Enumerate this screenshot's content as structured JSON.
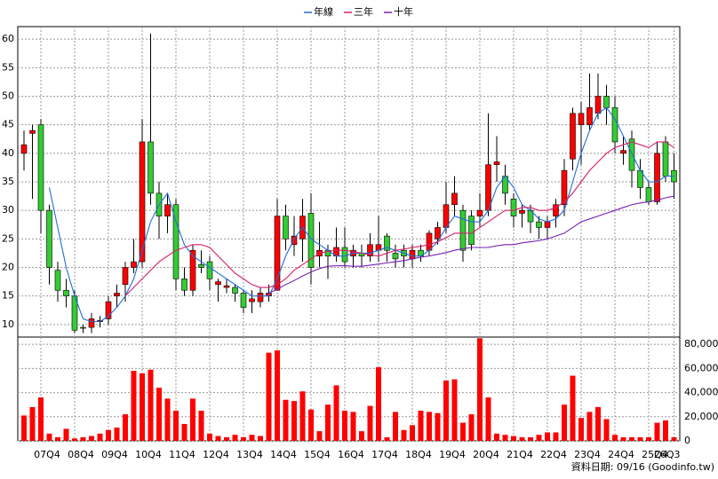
{
  "chart_data": {
    "type": "candlestick",
    "legend": "top",
    "grid": true,
    "footnote": "資料日期: 09/16 (Goodinfo.tw)",
    "categories": [
      null,
      null,
      "07Q4",
      null,
      null,
      null,
      "08Q4",
      null,
      null,
      null,
      "09Q4",
      null,
      null,
      null,
      "10Q4",
      null,
      null,
      null,
      "11Q4",
      null,
      null,
      null,
      "12Q4",
      null,
      null,
      null,
      "13Q4",
      null,
      null,
      null,
      "14Q4",
      null,
      null,
      null,
      "15Q4",
      null,
      null,
      null,
      "16Q4",
      null,
      null,
      null,
      "17Q4",
      null,
      null,
      null,
      "18Q4",
      null,
      null,
      null,
      "19Q4",
      null,
      null,
      null,
      "20Q4",
      null,
      null,
      null,
      "21Q4",
      null,
      null,
      null,
      "22Q4",
      null,
      null,
      null,
      "23Q4",
      null,
      null,
      null,
      "24Q4",
      null,
      null,
      null,
      "25Q4",
      null,
      null,
      "26Q3"
    ],
    "open": [
      40,
      43.5,
      45,
      30,
      19.5,
      16,
      15,
      9.5,
      9.5,
      10.5,
      11,
      15,
      17,
      20,
      21,
      42,
      33,
      29,
      31,
      18,
      16,
      20.5,
      21,
      17,
      16.5,
      16.5,
      15.5,
      14,
      14,
      15,
      16,
      29,
      24,
      25,
      29.5,
      22,
      23,
      22,
      23.5,
      22,
      22.5,
      22,
      23,
      25.5,
      22.5,
      23,
      21.5,
      23,
      23,
      25,
      27,
      31,
      30,
      29,
      29,
      30,
      38,
      36,
      32,
      29.5,
      30,
      28,
      27,
      29,
      31,
      39,
      45,
      45,
      47,
      50,
      48,
      40,
      42.5,
      37,
      34,
      31.5,
      42,
      37
    ],
    "high": [
      44,
      45,
      46,
      31,
      21,
      18,
      16,
      10,
      12,
      11.5,
      15,
      17,
      21,
      25,
      46,
      61,
      35,
      33,
      32,
      20,
      24,
      23,
      22,
      18,
      18,
      17,
      16,
      16,
      16.5,
      17,
      32,
      31,
      29,
      32,
      33,
      28,
      24,
      27,
      27,
      24,
      24,
      26,
      29,
      26,
      24,
      24,
      24,
      24,
      26.5,
      28,
      35,
      36,
      31,
      30,
      33,
      47,
      43,
      38,
      33,
      31,
      31,
      29,
      29,
      32,
      39,
      48,
      49,
      54,
      54,
      52,
      50,
      43,
      44,
      39,
      35,
      42,
      43,
      40
    ],
    "low": [
      37,
      32,
      26,
      17,
      14,
      13,
      8.5,
      8.5,
      8.5,
      9.5,
      10,
      13,
      14,
      19,
      20,
      31,
      25,
      26,
      16,
      15,
      15,
      19,
      16,
      14,
      15.5,
      14,
      12,
      12,
      13,
      14,
      16,
      23,
      22,
      21,
      17,
      20,
      18,
      21,
      20,
      20,
      20,
      21,
      21,
      21,
      20,
      20,
      20,
      21,
      22,
      24,
      26,
      29,
      21,
      23,
      27,
      29,
      35,
      31,
      27,
      27,
      26,
      25,
      25,
      27,
      29,
      37,
      38,
      44,
      46,
      45,
      40,
      38,
      34,
      32,
      31,
      31,
      35,
      32
    ],
    "close": [
      41.5,
      44,
      30,
      20,
      16,
      15,
      9,
      9.4,
      11,
      10.7,
      14,
      15.5,
      20,
      21,
      42,
      33,
      29,
      31,
      18,
      16,
      23,
      20,
      18,
      17.5,
      16.8,
      15.5,
      13,
      14.5,
      15.5,
      15.5,
      29,
      25,
      25.5,
      29,
      20,
      23,
      22,
      23.5,
      21,
      23,
      22,
      24,
      24,
      23,
      21.5,
      22,
      23,
      22,
      26,
      27,
      31,
      33,
      23,
      24,
      30,
      38,
      38.5,
      33,
      29,
      30,
      28,
      27,
      28,
      31,
      37,
      47,
      47,
      48,
      50,
      48,
      42,
      40.5,
      37,
      34,
      31.5,
      40,
      36,
      35
    ],
    "up_color": "#ff0000",
    "down_color": "#33cc33",
    "ylim": [
      7.8,
      62.2
    ],
    "yticks": [
      10,
      15,
      20,
      25,
      30,
      35,
      40,
      45,
      50,
      55,
      60
    ],
    "series": [
      {
        "name": "年線",
        "color": "#1e6fd9",
        "values": [
          null,
          null,
          null,
          34,
          27,
          20,
          15,
          11,
          10.5,
          10.5,
          11.5,
          13,
          15,
          18,
          23,
          28,
          31,
          33,
          28,
          24,
          22,
          21,
          20,
          19,
          18,
          17,
          16,
          15,
          15,
          15,
          18,
          22,
          25,
          27,
          25,
          24,
          23,
          22,
          22,
          22.5,
          22.5,
          22.5,
          23,
          23.5,
          23,
          22.5,
          22,
          22,
          23,
          24.5,
          27,
          29,
          28.5,
          28,
          28,
          30,
          34,
          36,
          34,
          31,
          30,
          28.5,
          28,
          28.5,
          30,
          35,
          40,
          44,
          47,
          48,
          46,
          43,
          40,
          37,
          35,
          35,
          36,
          36
        ]
      },
      {
        "name": "三年",
        "color": "#d4206a",
        "values": [
          null,
          null,
          null,
          null,
          null,
          null,
          null,
          null,
          null,
          null,
          null,
          null,
          15,
          16.5,
          18,
          19.5,
          21,
          22,
          23,
          23.5,
          24,
          24,
          23.5,
          22,
          20.5,
          19,
          18,
          17,
          16.5,
          16.5,
          17,
          18,
          19.5,
          20.5,
          21.5,
          22.5,
          22.8,
          23,
          23,
          22.8,
          22.5,
          22.2,
          22,
          22.5,
          23,
          23.2,
          23.5,
          23.7,
          24,
          24.5,
          25.2,
          26,
          26,
          26,
          27,
          28,
          29,
          30,
          30,
          30.5,
          30.5,
          30,
          30,
          30.5,
          31.5,
          33,
          35,
          37,
          38.5,
          40,
          41,
          41.5,
          42,
          41.5,
          41,
          42,
          42,
          41
        ]
      },
      {
        "name": "十年",
        "color": "#7a1fb5",
        "values": [
          null,
          null,
          null,
          null,
          null,
          null,
          null,
          null,
          null,
          null,
          null,
          null,
          null,
          null,
          null,
          null,
          null,
          null,
          null,
          null,
          null,
          null,
          null,
          null,
          null,
          null,
          null,
          null,
          null,
          15.5,
          16.2,
          17,
          17.7,
          18.5,
          19.2,
          19.8,
          20.2,
          20.3,
          20.3,
          20.2,
          20.2,
          20.4,
          20.6,
          20.8,
          21,
          21.2,
          21.5,
          21.8,
          22,
          22.3,
          22.6,
          23,
          23.3,
          23.5,
          23.5,
          23.5,
          23.8,
          24,
          24,
          24.3,
          24.5,
          24.7,
          25,
          25.5,
          26,
          27,
          28,
          28.5,
          29,
          29.5,
          30,
          30.5,
          31,
          31.3,
          31.5,
          31.8,
          32.2,
          32.5
        ]
      }
    ],
    "volume": {
      "color": "#ff0000",
      "values": [
        21000,
        28000,
        36000,
        6000,
        3000,
        10000,
        2000,
        3000,
        4000,
        6000,
        9000,
        11000,
        22000,
        58000,
        56000,
        59000,
        44000,
        35000,
        25000,
        14000,
        35000,
        25000,
        6000,
        4000,
        3000,
        5000,
        3000,
        5000,
        4000,
        73000,
        75000,
        34000,
        33000,
        41000,
        26000,
        8000,
        30000,
        46000,
        25000,
        24000,
        8000,
        29000,
        61000,
        3000,
        24000,
        9000,
        13000,
        25000,
        24000,
        23000,
        50000,
        51000,
        15000,
        22000,
        85000,
        36000,
        6000,
        5000,
        4000,
        3000,
        3000,
        5000,
        7000,
        7000,
        30000,
        54000,
        19000,
        24000,
        28000,
        18000,
        5000,
        3000,
        3000,
        3000,
        3000,
        15000,
        17000,
        3000
      ],
      "ylim": [
        0,
        86000
      ],
      "yticks": [
        0,
        {
          "value": 20000,
          "label": "20,000"
        },
        {
          "value": 40000,
          "label": "40,000"
        },
        {
          "value": 60000,
          "label": "60,000"
        },
        {
          "value": 80000,
          "label": "80,000"
        }
      ]
    }
  }
}
